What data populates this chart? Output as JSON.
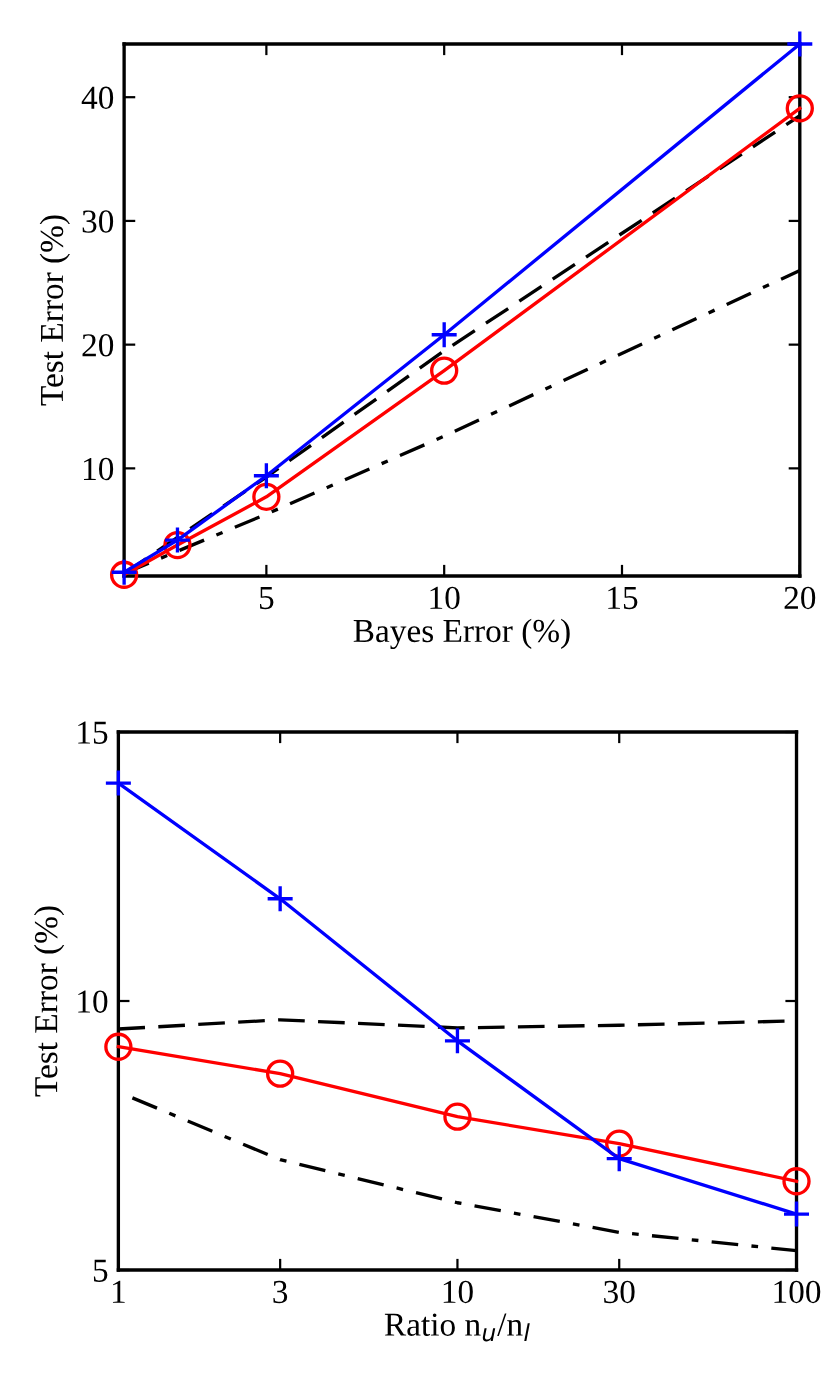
{
  "chart_data": [
    {
      "type": "line",
      "xlabel": "Bayes Error (%)",
      "ylabel": "Test Error (%)",
      "xlim": [
        1,
        20
      ],
      "ylim": [
        1.3,
        44.3
      ],
      "xticks": [
        5,
        10,
        15,
        20
      ],
      "yticks": [
        10,
        20,
        30,
        40
      ],
      "grid": false,
      "legend": false,
      "series": [
        {
          "color": "#0000ff",
          "marker": "cross",
          "line_style": "solid",
          "x": [
            1,
            2.5,
            5,
            10,
            20
          ],
          "values": [
            1.6,
            4.2,
            9.4,
            20.8,
            44.3
          ]
        },
        {
          "color": "#ff0000",
          "marker": "circle",
          "line_style": "solid",
          "x": [
            1,
            2.5,
            5,
            10,
            20
          ],
          "values": [
            1.4,
            3.8,
            7.7,
            17.9,
            39.1
          ]
        },
        {
          "color": "#000000",
          "marker": "none",
          "line_style": "dashed",
          "x": [
            1,
            5,
            10,
            20
          ],
          "values": [
            1.5,
            9.3,
            19.5,
            38.5
          ]
        },
        {
          "color": "#000000",
          "marker": "none",
          "line_style": "dashdot",
          "x": [
            1,
            5,
            10,
            20
          ],
          "values": [
            1.5,
            6.3,
            12.6,
            26
          ]
        }
      ]
    },
    {
      "type": "line",
      "xlabel": "Ratio n$_{u}$/n$_{l}$",
      "ylabel": "Test Error (%)",
      "log": "x",
      "xlim": [
        1,
        100
      ],
      "ylim": [
        5,
        15
      ],
      "xticks": [
        1,
        3,
        10,
        30,
        100
      ],
      "yticks": [
        5,
        10,
        15
      ],
      "grid": false,
      "legend": false,
      "series": [
        {
          "color": "#0000ff",
          "marker": "cross",
          "line_style": "solid",
          "x": [
            1,
            3,
            10,
            30,
            100
          ],
          "values": [
            14.05,
            11.9,
            9.26,
            7.07,
            6.04
          ]
        },
        {
          "color": "#ff0000",
          "marker": "circle",
          "line_style": "solid",
          "x": [
            1,
            3,
            10,
            30,
            100
          ],
          "values": [
            9.15,
            8.65,
            7.85,
            7.35,
            6.65
          ]
        },
        {
          "color": "#000000",
          "marker": "none",
          "line_style": "dashed",
          "x": [
            1,
            3,
            10,
            30,
            100
          ],
          "values": [
            9.48,
            9.65,
            9.5,
            9.55,
            9.63
          ]
        },
        {
          "color": "#000000",
          "marker": "none",
          "line_style": "dashdot",
          "x": [
            1.1,
            3,
            10,
            30,
            100
          ],
          "values": [
            8.2,
            7.05,
            6.25,
            5.7,
            5.36
          ]
        }
      ]
    }
  ]
}
